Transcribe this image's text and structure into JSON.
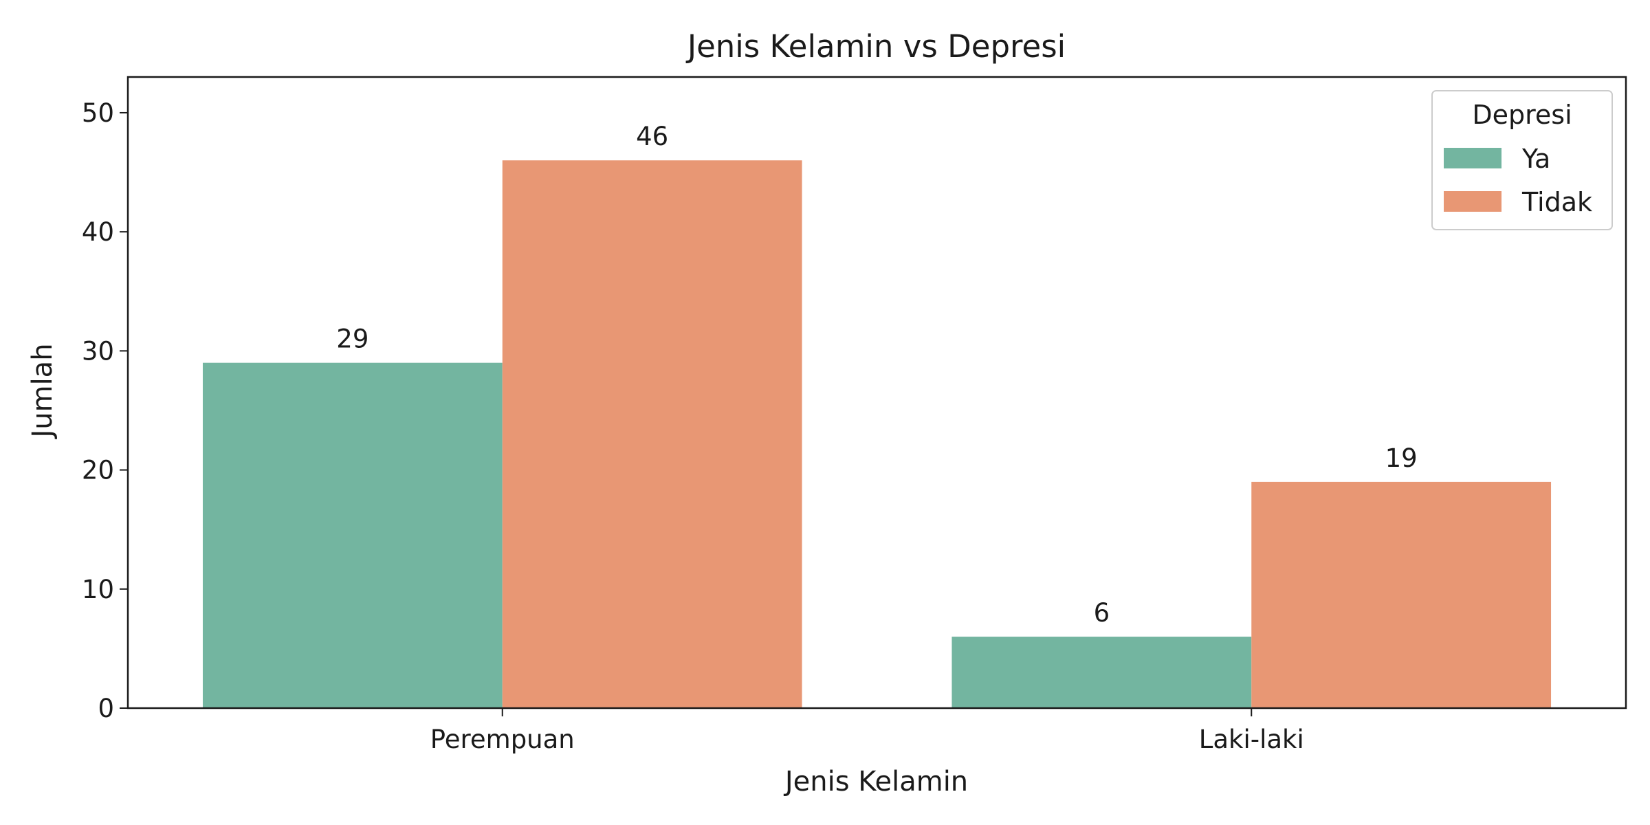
{
  "chart_data": {
    "type": "bar",
    "title": "Jenis Kelamin vs Depresi",
    "xlabel": "Jenis Kelamin",
    "ylabel": "Jumlah",
    "categories": [
      "Perempuan",
      "Laki-laki"
    ],
    "series": [
      {
        "name": "Ya",
        "values": [
          29,
          6
        ],
        "color": "#73b5a0"
      },
      {
        "name": "Tidak",
        "values": [
          46,
          19
        ],
        "color": "#e89774"
      }
    ],
    "ylim": [
      0,
      53
    ],
    "yticks": [
      0,
      10,
      20,
      30,
      40,
      50
    ],
    "legend": {
      "title": "Depresi",
      "placement": "top-right"
    },
    "grid": false
  }
}
